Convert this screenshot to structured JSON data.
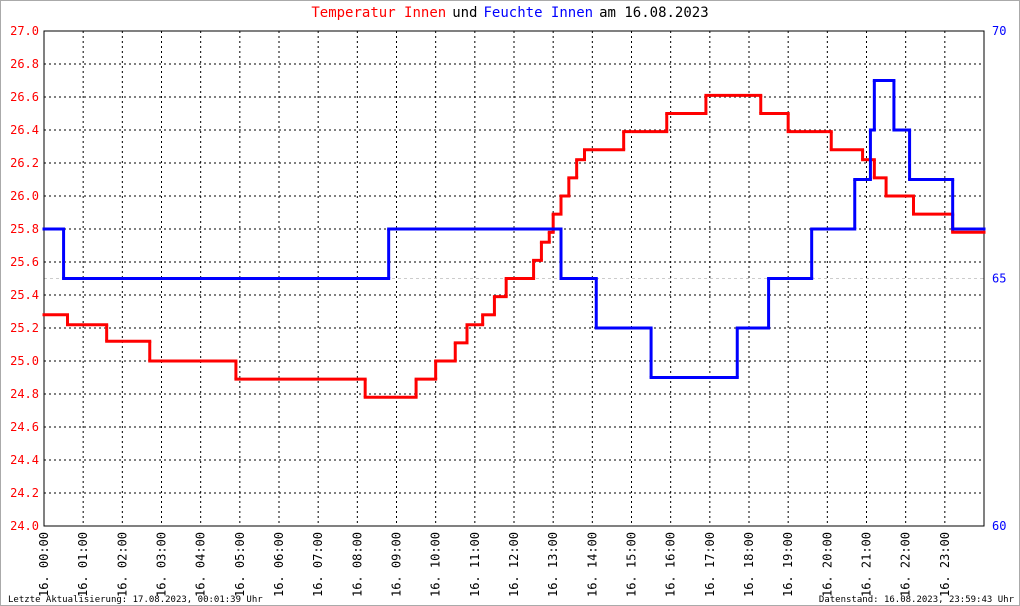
{
  "chart_data": {
    "type": "step-line",
    "title": [
      "und",
      "am 16.08.2023"
    ],
    "footer_left": "Letzte Aktualisierung: 17.08.2023, 00:01:39 Uhr",
    "footer_right": "Datenstand: 16.08.2023, 23:59:43 Uhr",
    "xlim": [
      0,
      24
    ],
    "xticks": [
      {
        "value": 0,
        "label": "16. 00:00"
      },
      {
        "value": 1,
        "label": "16. 01:00"
      },
      {
        "value": 2,
        "label": "16. 02:00"
      },
      {
        "value": 3,
        "label": "16. 03:00"
      },
      {
        "value": 4,
        "label": "16. 04:00"
      },
      {
        "value": 5,
        "label": "16. 05:00"
      },
      {
        "value": 6,
        "label": "16. 06:00"
      },
      {
        "value": 7,
        "label": "16. 07:00"
      },
      {
        "value": 8,
        "label": "16. 08:00"
      },
      {
        "value": 9,
        "label": "16. 09:00"
      },
      {
        "value": 10,
        "label": "16. 10:00"
      },
      {
        "value": 11,
        "label": "16. 11:00"
      },
      {
        "value": 12,
        "label": "16. 12:00"
      },
      {
        "value": 13,
        "label": "16. 13:00"
      },
      {
        "value": 14,
        "label": "16. 14:00"
      },
      {
        "value": 15,
        "label": "16. 15:00"
      },
      {
        "value": 16,
        "label": "16. 16:00"
      },
      {
        "value": 17,
        "label": "16. 17:00"
      },
      {
        "value": 18,
        "label": "16. 18:00"
      },
      {
        "value": 19,
        "label": "16. 19:00"
      },
      {
        "value": 20,
        "label": "16. 20:00"
      },
      {
        "value": 21,
        "label": "16. 21:00"
      },
      {
        "value": 22,
        "label": "16. 22:00"
      },
      {
        "value": 23,
        "label": "16. 23:00"
      }
    ],
    "ylim": [
      24,
      27
    ],
    "yticks": [
      {
        "value": 24,
        "label": "24.0"
      },
      {
        "value": 24.2,
        "label": "24.2"
      },
      {
        "value": 24.4,
        "label": "24.4"
      },
      {
        "value": 24.6,
        "label": "24.6"
      },
      {
        "value": 24.8,
        "label": "24.8"
      },
      {
        "value": 25,
        "label": "25.0"
      },
      {
        "value": 25.2,
        "label": "25.2"
      },
      {
        "value": 25.4,
        "label": "25.4"
      },
      {
        "value": 25.6,
        "label": "25.6"
      },
      {
        "value": 25.8,
        "label": "25.8"
      },
      {
        "value": 26,
        "label": "26.0"
      },
      {
        "value": 26.2,
        "label": "26.2"
      },
      {
        "value": 26.4,
        "label": "26.4"
      },
      {
        "value": 26.6,
        "label": "26.6"
      },
      {
        "value": 26.8,
        "label": "26.8"
      },
      {
        "value": 27,
        "label": "27.0"
      }
    ],
    "y2lim": [
      60,
      70
    ],
    "y2ticks": [
      60,
      65,
      70
    ],
    "grid": true,
    "series": [
      {
        "name": "Temperatur Innen",
        "color": "#ff0000",
        "x": [
          0,
          0.6,
          1.6,
          2.7,
          4.9,
          8.2,
          9.5,
          10.0,
          10.5,
          10.8,
          11.2,
          11.5,
          11.8,
          12.5,
          12.7,
          12.9,
          13.0,
          13.2,
          13.4,
          13.6,
          13.8,
          14.8,
          15.9,
          16.9,
          18.3,
          19.0,
          20.1,
          20.9,
          21.2,
          21.5,
          22.2,
          23.2
        ],
        "values": [
          25.28,
          25.22,
          25.12,
          25.0,
          24.89,
          24.78,
          24.89,
          25.0,
          25.11,
          25.22,
          25.28,
          25.39,
          25.5,
          25.61,
          25.72,
          25.78,
          25.89,
          26.0,
          26.11,
          26.22,
          26.28,
          26.39,
          26.5,
          26.61,
          26.5,
          26.39,
          26.28,
          26.22,
          26.11,
          26.0,
          25.89,
          25.78
        ]
      },
      {
        "name": "Feuchte Innen",
        "color": "#0000ff",
        "axis": "y2",
        "x": [
          0,
          0.5,
          8.8,
          13.2,
          14.1,
          15.5,
          17.7,
          18.5,
          19.6,
          20.7,
          21.1,
          21.2,
          21.7,
          22.1,
          23.2
        ],
        "values": [
          66,
          65,
          66,
          65,
          64,
          63,
          64,
          65,
          66,
          67,
          68,
          69,
          68,
          67,
          66
        ]
      }
    ]
  }
}
